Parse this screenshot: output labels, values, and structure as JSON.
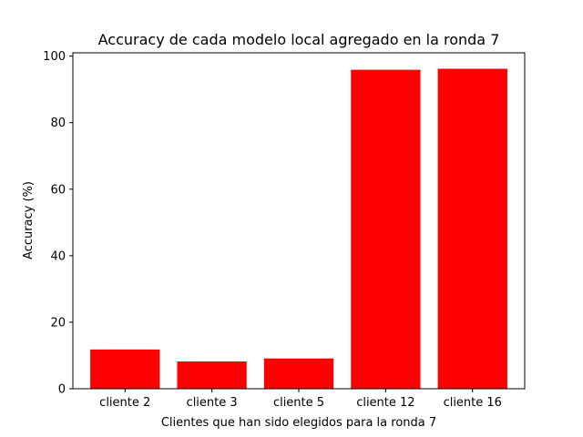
{
  "chart_data": {
    "type": "bar",
    "title": "Accuracy de cada modelo local agregado en la ronda 7",
    "xlabel": "Clientes que han sido elegidos para la ronda 7",
    "ylabel": "Accuracy (%)",
    "categories": [
      "cliente 2",
      "cliente 3",
      "cliente 5",
      "cliente 12",
      "cliente 16"
    ],
    "values": [
      11.8,
      8.2,
      9.1,
      95.9,
      96.2
    ],
    "ylim": [
      0,
      101
    ],
    "yticks": [
      0,
      20,
      40,
      60,
      80,
      100
    ],
    "bar_color": "#ff0000",
    "grid": false,
    "legend": false
  }
}
